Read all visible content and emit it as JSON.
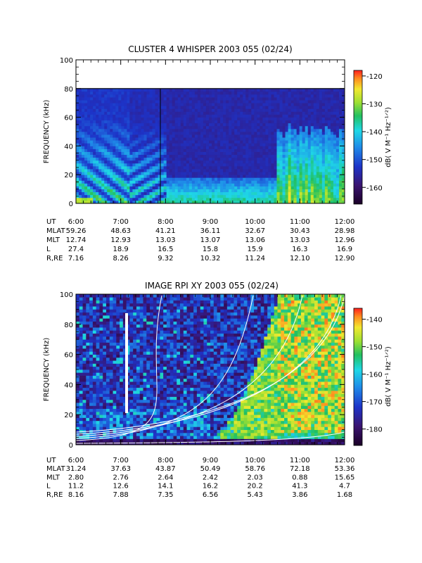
{
  "chart_data": [
    {
      "type": "heatmap",
      "title": "CLUSTER 4 WHISPER 2003 055 (02/24)",
      "ylabel": "FREQUENCY (kHz)",
      "ylim": [
        0,
        100
      ],
      "yticks": [
        "0",
        "20",
        "40",
        "60",
        "80",
        "100"
      ],
      "xlim": [
        "6:00",
        "12:00"
      ],
      "xticks": [
        "6:00",
        "7:00",
        "8:00",
        "9:00",
        "10:00",
        "11:00",
        "12:00"
      ],
      "colorbar": {
        "label": "dB( V M⁻¹ Hz⁻¹ᐟ²)",
        "range": [
          -166,
          -118
        ],
        "ticks": [
          "-120",
          "-130",
          "-140",
          "-150",
          "-160"
        ]
      },
      "data_upper_freq_khz": 80,
      "ephemeris": [
        {
          "name": "UT",
          "values": [
            "6:00",
            "7:00",
            "8:00",
            "9:00",
            "10:00",
            "11:00",
            "12:00"
          ]
        },
        {
          "name": "MLAT",
          "values": [
            "59.26",
            "48.63",
            "41.21",
            "36.11",
            "32.67",
            "30.43",
            "28.98"
          ]
        },
        {
          "name": "MLT",
          "values": [
            "12.74",
            "12.93",
            "13.03",
            "13.07",
            "13.06",
            "13.03",
            "12.96"
          ]
        },
        {
          "name": "L",
          "values": [
            "27.4",
            "18.9",
            "16.5",
            "15.8",
            "15.9",
            "16.3",
            "16.9"
          ]
        },
        {
          "name": "R,RE",
          "values": [
            "7.16",
            "8.26",
            "9.32",
            "10.32",
            "11.24",
            "12.10",
            "12.90"
          ]
        }
      ]
    },
    {
      "type": "heatmap",
      "title": "IMAGE RPI XY 2003 055 (02/24)",
      "ylabel": "FREQUENCY (kHz)",
      "ylim": [
        0,
        100
      ],
      "yticks": [
        "0",
        "20",
        "40",
        "60",
        "80",
        "100"
      ],
      "xlim": [
        "6:00",
        "12:00"
      ],
      "xticks": [
        "6:00",
        "7:00",
        "8:00",
        "9:00",
        "10:00",
        "11:00",
        "12:00"
      ],
      "colorbar": {
        "label": "dB( V M⁻¹ Hz⁻¹ᐟ²)",
        "range": [
          -186,
          -136
        ],
        "ticks": [
          "-140",
          "-150",
          "-160",
          "-170",
          "-180"
        ]
      },
      "ephemeris": [
        {
          "name": "UT",
          "values": [
            "6:00",
            "7:00",
            "8:00",
            "9:00",
            "10:00",
            "11:00",
            "12:00"
          ]
        },
        {
          "name": "MLAT",
          "values": [
            "31.24",
            "37.63",
            "43.87",
            "50.49",
            "58.76",
            "72.18",
            "53.36"
          ]
        },
        {
          "name": "MLT",
          "values": [
            "2.80",
            "2.76",
            "2.64",
            "2.42",
            "2.03",
            "0.88",
            "15.65"
          ]
        },
        {
          "name": "L",
          "values": [
            "11.2",
            "12.6",
            "14.1",
            "16.2",
            "20.2",
            "41.3",
            "4.7"
          ]
        },
        {
          "name": "R,RE",
          "values": [
            "8.16",
            "7.88",
            "7.35",
            "6.56",
            "5.43",
            "3.86",
            "1.68"
          ]
        }
      ]
    }
  ]
}
